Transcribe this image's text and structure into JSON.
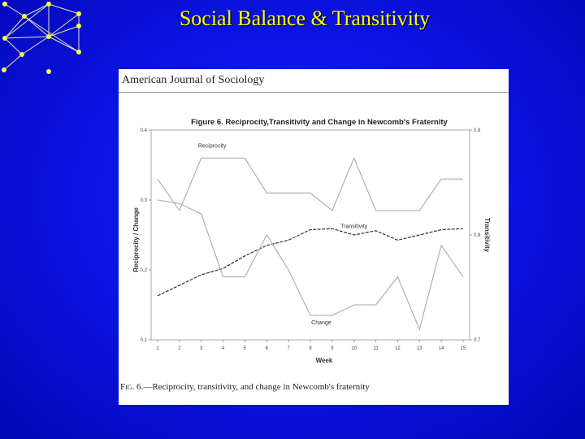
{
  "slide": {
    "title": "Social Balance & Transitivity"
  },
  "figure": {
    "journal_header": "American Journal of Sociology",
    "caption_prefix": "Fig. 6.",
    "caption_text": "—Reciprocity, transitivity, and change in Newcomb's fraternity"
  },
  "chart_data": {
    "type": "line",
    "title": "Figure 6. Reciprocity,Transitivity and Change in Newcomb's Fraternity",
    "xlabel": "Week",
    "ylabel_left": "Reciprocity / Change",
    "ylabel_right": "Transitivity",
    "x": [
      1,
      2,
      3,
      4,
      5,
      6,
      7,
      8,
      9,
      10,
      11,
      12,
      13,
      14,
      15
    ],
    "x_ticks": [
      "1",
      "2",
      "3",
      "4",
      "5",
      "6",
      "7",
      "8",
      "9",
      "10",
      "11",
      "12",
      "13",
      "14",
      "15"
    ],
    "ylim_left": [
      0.1,
      0.4
    ],
    "ylim_right": [
      0.7,
      0.9
    ],
    "y_ticks_left": [
      "0.1",
      "0.2",
      "0.3",
      "0.4"
    ],
    "y_ticks_right": [
      "0.7",
      "0.8",
      "0.9"
    ],
    "grid": false,
    "series": [
      {
        "name": "Reciprocity",
        "axis": "left",
        "values": [
          0.33,
          0.285,
          0.36,
          0.36,
          0.36,
          0.31,
          0.31,
          0.31,
          0.285,
          0.36,
          0.285,
          0.285,
          0.285,
          0.33,
          0.33
        ]
      },
      {
        "name": "Transitivity",
        "axis": "right",
        "values": [
          0.742,
          0.752,
          0.762,
          0.768,
          0.78,
          0.79,
          0.795,
          0.805,
          0.806,
          0.8,
          0.804,
          0.795,
          0.8,
          0.805,
          0.806
        ]
      },
      {
        "name": "Change",
        "axis": "left",
        "values": [
          0.3,
          0.295,
          0.28,
          0.19,
          0.19,
          0.25,
          0.2,
          0.135,
          0.135,
          0.15,
          0.15,
          0.19,
          0.115,
          0.235,
          0.19
        ]
      }
    ],
    "annotations": [
      {
        "text": "Reciprocity",
        "x": 3.5,
        "axis": "left",
        "y": 0.375
      },
      {
        "text": "Transitivity",
        "x": 10,
        "axis": "left",
        "y": 0.26
      },
      {
        "text": "Change",
        "x": 8.5,
        "axis": "left",
        "y": 0.122
      }
    ]
  }
}
